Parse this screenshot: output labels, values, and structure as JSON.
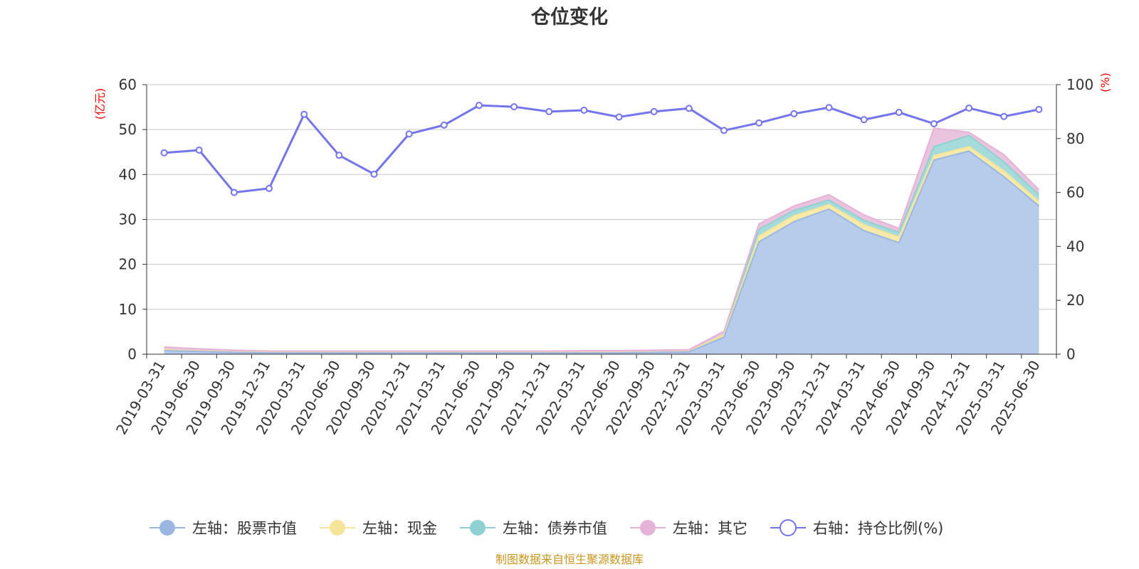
{
  "chart_data": {
    "type": "area",
    "title": "仓位变化",
    "left_unit": "(亿元)",
    "right_unit": "(%)",
    "categories": [
      "2019-03-31",
      "2019-06-30",
      "2019-09-30",
      "2019-12-31",
      "2020-03-31",
      "2020-06-30",
      "2020-09-30",
      "2020-12-31",
      "2021-03-31",
      "2021-06-30",
      "2021-09-30",
      "2021-12-31",
      "2022-03-31",
      "2022-06-30",
      "2022-09-30",
      "2022-12-31",
      "2023-03-31",
      "2023-06-30",
      "2023-09-30",
      "2023-12-31",
      "2024-03-31",
      "2024-06-30",
      "2024-09-30",
      "2024-12-31",
      "2025-03-31",
      "2025-06-30"
    ],
    "left_axis": {
      "min": 0,
      "max": 60,
      "ticks": [
        "0",
        "10",
        "20",
        "30",
        "40",
        "50",
        "60"
      ]
    },
    "right_axis": {
      "min": 0,
      "max": 100,
      "ticks": [
        "0",
        "20",
        "40",
        "60",
        "80",
        "100"
      ]
    },
    "grid": true,
    "legend_position": "bottom",
    "stack": [
      {
        "name": "左轴：股票市值",
        "color": "#9bb7e1",
        "fill": "#b7cceb",
        "values": [
          0.8,
          0.6,
          0.4,
          0.3,
          0.3,
          0.3,
          0.3,
          0.3,
          0.3,
          0.3,
          0.3,
          0.3,
          0.3,
          0.3,
          0.4,
          0.5,
          3.8,
          25.0,
          29.5,
          32.3,
          27.5,
          24.8,
          43.2,
          45.2,
          39.5,
          33.0
        ]
      },
      {
        "name": "左轴：现金",
        "color": "#f5e49a",
        "fill": "#f7eaa8",
        "values": [
          0.2,
          0.1,
          0.1,
          0.1,
          0.1,
          0.1,
          0.1,
          0.1,
          0.1,
          0.1,
          0.1,
          0.1,
          0.1,
          0.1,
          0.1,
          0.1,
          0.5,
          1.3,
          1.3,
          1.0,
          1.3,
          1.3,
          1.0,
          1.0,
          1.3,
          1.0
        ]
      },
      {
        "name": "左轴：债券市值",
        "color": "#8fd1d3",
        "fill": "#a6dbdc",
        "values": [
          0.0,
          0.0,
          0.0,
          0.0,
          0.0,
          0.0,
          0.0,
          0.0,
          0.0,
          0.0,
          0.0,
          0.0,
          0.0,
          0.0,
          0.0,
          0.0,
          0.0,
          1.5,
          1.2,
          1.0,
          1.0,
          1.0,
          2.0,
          2.5,
          2.0,
          1.5
        ]
      },
      {
        "name": "左轴：其它",
        "color": "#e6b3d8",
        "fill": "#eac3de",
        "values": [
          0.6,
          0.5,
          0.4,
          0.3,
          0.3,
          0.3,
          0.3,
          0.3,
          0.3,
          0.3,
          0.3,
          0.3,
          0.4,
          0.4,
          0.4,
          0.4,
          0.8,
          1.2,
          1.0,
          1.2,
          1.2,
          0.9,
          4.1,
          0.7,
          1.6,
          1.1
        ]
      }
    ],
    "line": {
      "name": "右轴：持仓比例(%)",
      "color": "#7474ec",
      "values": [
        74.7,
        75.7,
        60.0,
        61.5,
        89.0,
        73.8,
        66.8,
        81.7,
        85.0,
        92.3,
        91.8,
        90.0,
        90.5,
        88.0,
        90.0,
        91.2,
        83.0,
        85.8,
        89.2,
        91.5,
        87.0,
        89.7,
        85.5,
        91.3,
        88.2,
        90.8
      ]
    }
  },
  "source_text": "制图数据来自恒生聚源数据库"
}
